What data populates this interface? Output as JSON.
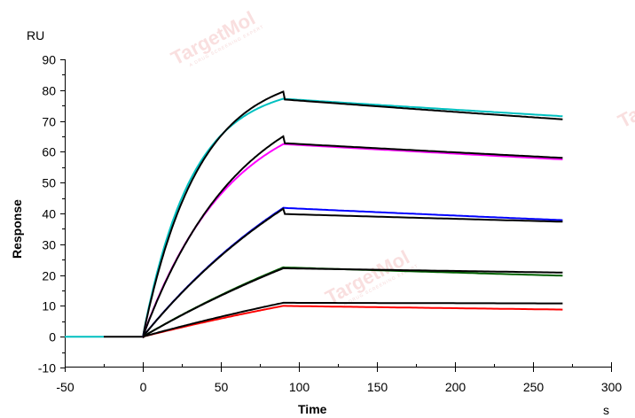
{
  "chart_data": {
    "type": "line",
    "title": "",
    "xlabel": "Time",
    "ylabel": "Response",
    "x_unit": "s",
    "y_unit": "RU",
    "xlim": [
      -50,
      300
    ],
    "ylim": [
      -10,
      90
    ],
    "x_ticks": [
      -50,
      0,
      50,
      100,
      150,
      200,
      250,
      300
    ],
    "y_ticks": [
      -10,
      0,
      10,
      20,
      30,
      40,
      50,
      60,
      70,
      80,
      90
    ],
    "grid": false,
    "legend": null,
    "association_end_s": 90,
    "dissociation_end_s": 270,
    "series": [
      {
        "name": "measured-cyan",
        "color": "#00c0c0",
        "kind": "measured",
        "plateau_assoc": 77.2,
        "end_value": 71.5,
        "kobs": 0.032
      },
      {
        "name": "fit-cyan",
        "color": "#000000",
        "kind": "fit",
        "plateau_assoc": 79.5,
        "start_dissoc": 77.0,
        "end_value": 70.5,
        "kobs": 0.028
      },
      {
        "name": "measured-magenta",
        "color": "#ff00ff",
        "kind": "measured",
        "plateau_assoc": 62.5,
        "end_value": 57.5,
        "kobs": 0.018
      },
      {
        "name": "fit-magenta",
        "color": "#000000",
        "kind": "fit",
        "plateau_assoc": 65.0,
        "start_dissoc": 62.8,
        "end_value": 58.0,
        "kobs": 0.016
      },
      {
        "name": "measured-blue",
        "color": "#0000ff",
        "kind": "measured",
        "plateau_assoc": 41.8,
        "end_value": 37.8,
        "kobs": 0.007
      },
      {
        "name": "fit-blue",
        "color": "#000000",
        "kind": "fit",
        "plateau_assoc": 41.5,
        "start_dissoc": 39.8,
        "end_value": 37.3,
        "kobs": 0.007
      },
      {
        "name": "measured-green",
        "color": "#006000",
        "kind": "measured",
        "plateau_assoc": 22.5,
        "end_value": 19.8,
        "kobs": 0.004
      },
      {
        "name": "fit-green",
        "color": "#000000",
        "kind": "fit",
        "plateau_assoc": 22.2,
        "start_dissoc": 22.2,
        "end_value": 20.8,
        "kobs": 0.004
      },
      {
        "name": "measured-red",
        "color": "#ff0000",
        "kind": "measured",
        "plateau_assoc": 10.0,
        "end_value": 8.8,
        "kobs": 0.003
      },
      {
        "name": "fit-red",
        "color": "#000000",
        "kind": "fit",
        "plateau_assoc": 11.0,
        "start_dissoc": 11.0,
        "end_value": 10.8,
        "kobs": 0.003
      }
    ]
  },
  "labels": {
    "y_unit": "RU",
    "x_unit": "s",
    "xlabel": "Time",
    "ylabel": "Response",
    "watermark": "TargetMol",
    "watermark_sub": "A DRUG SCREENING EXPERT"
  }
}
